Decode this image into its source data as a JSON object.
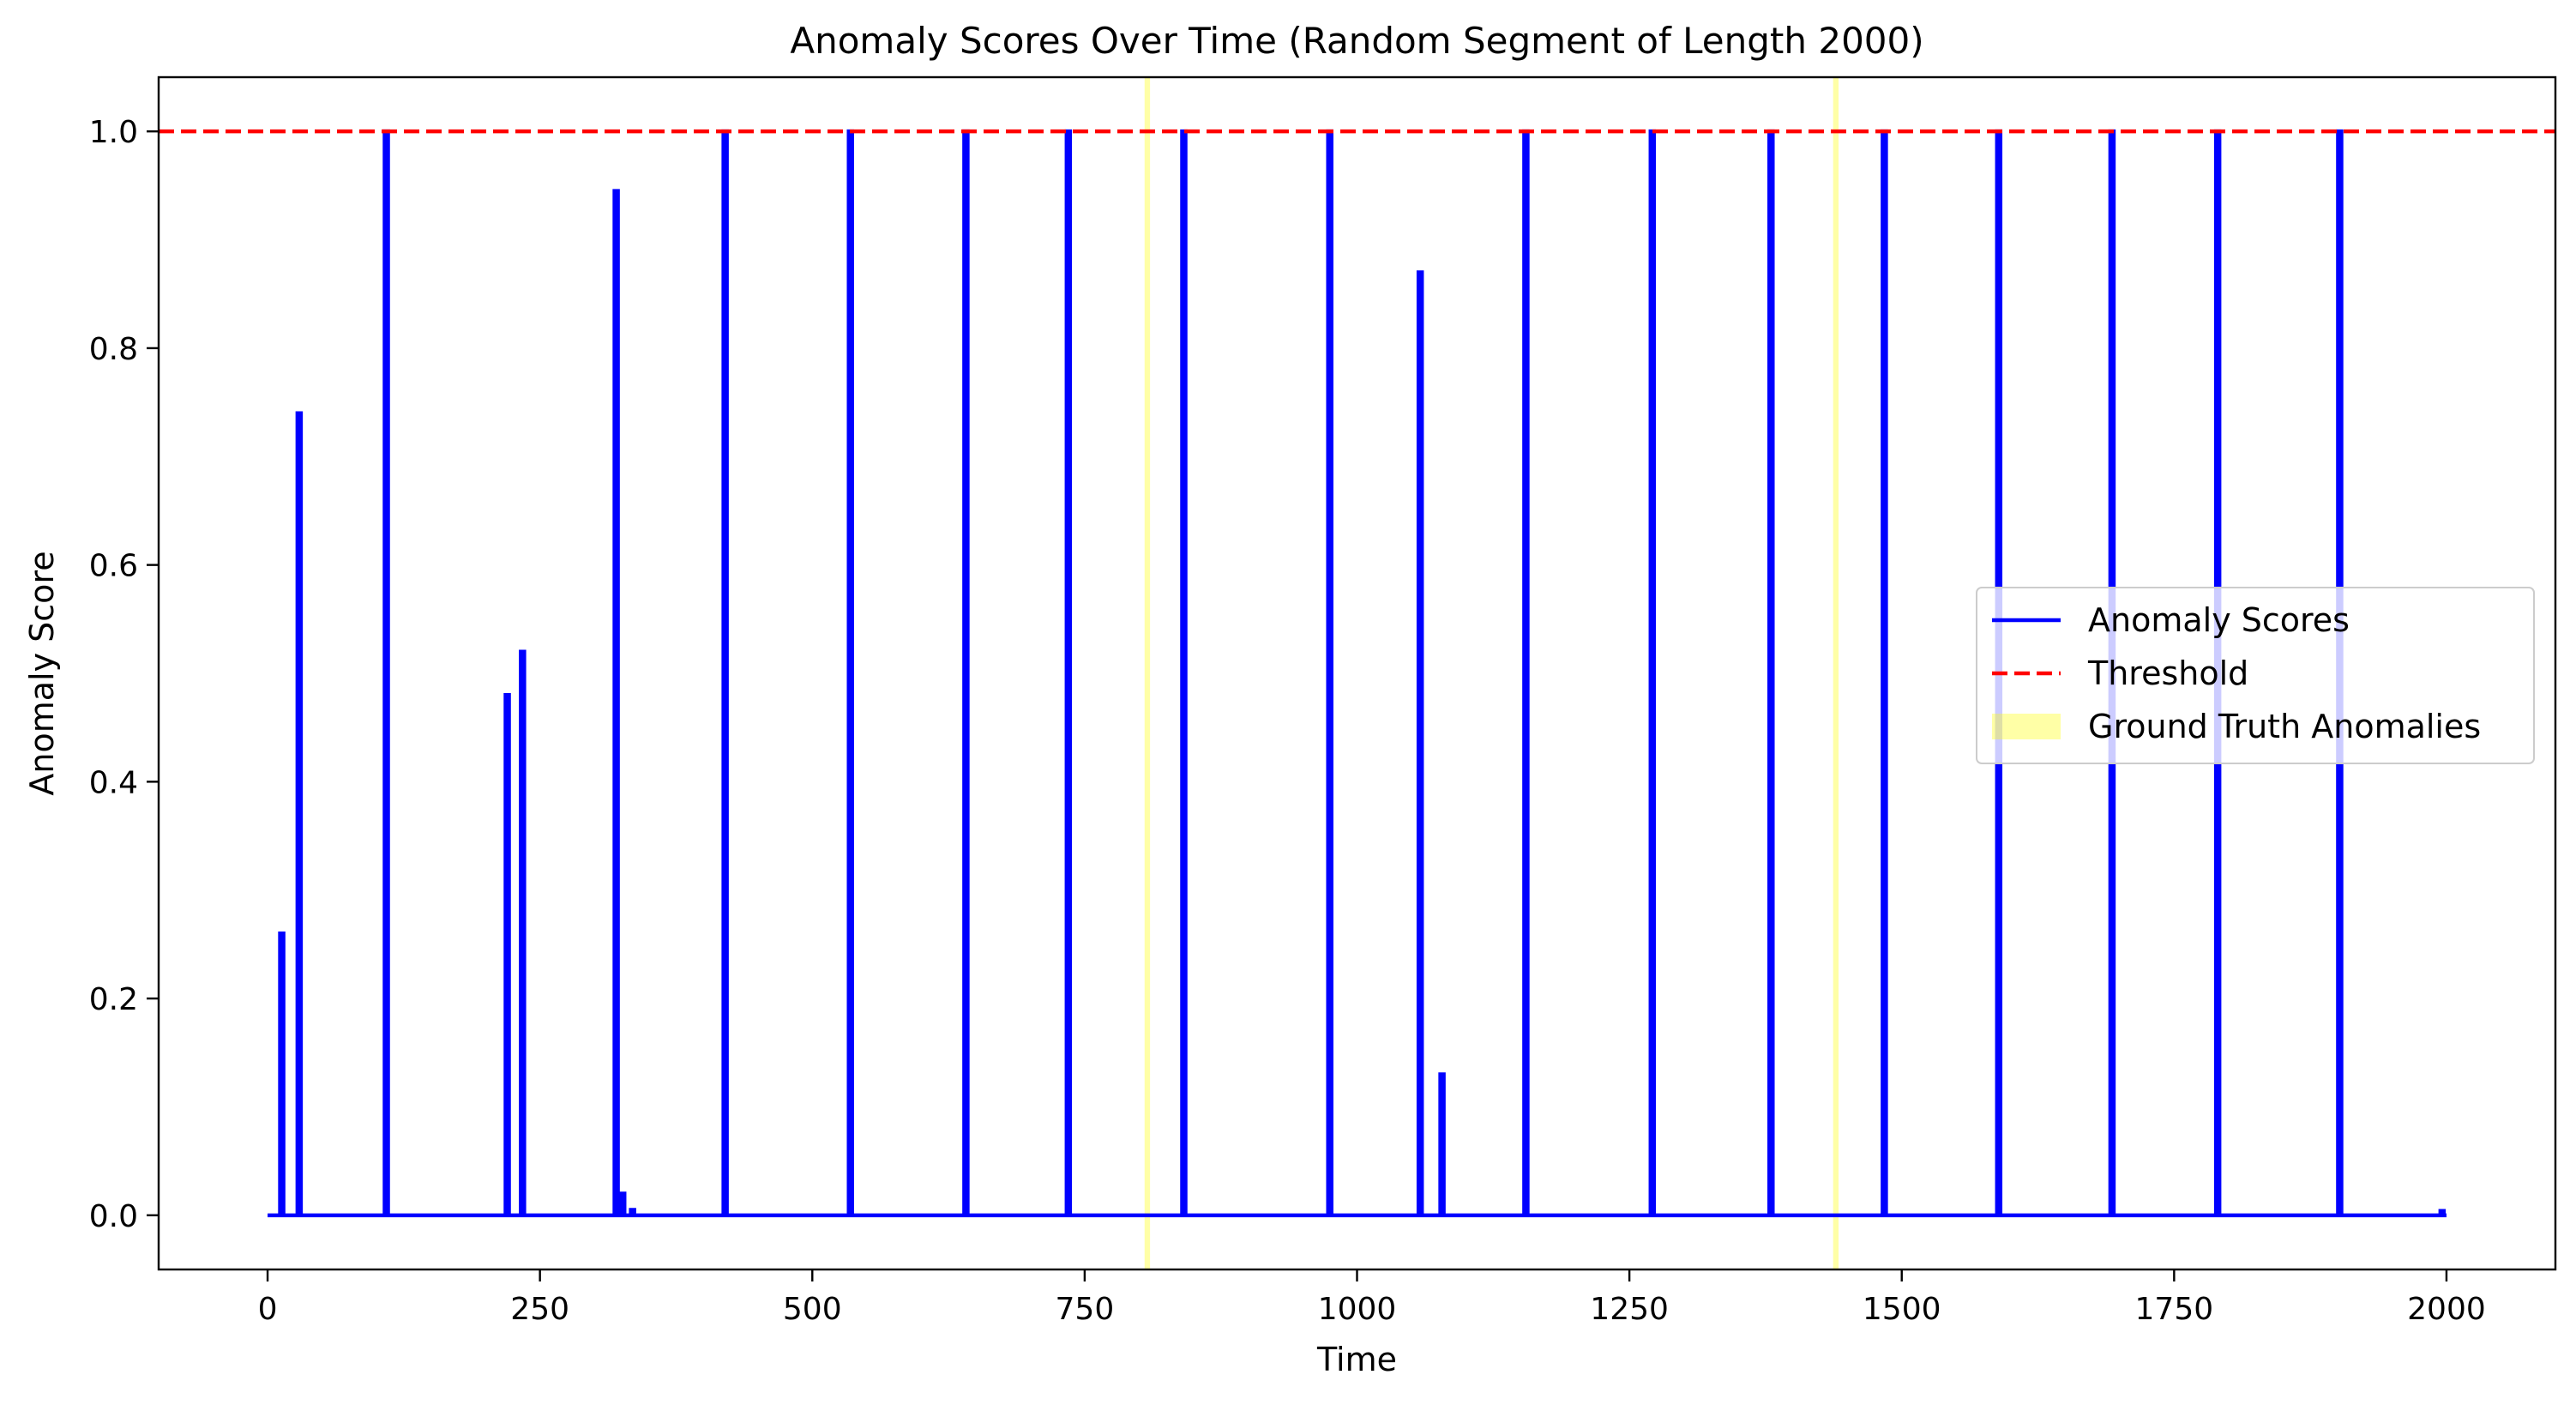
{
  "chart_data": {
    "type": "line",
    "title": "Anomaly Scores Over Time (Random Segment of Length 2000)",
    "xlabel": "Time",
    "ylabel": "Anomaly Score",
    "xlim": [
      -100,
      2100
    ],
    "ylim": [
      -0.05,
      1.05
    ],
    "xticks": [
      0,
      250,
      500,
      750,
      1000,
      1250,
      1500,
      1750,
      2000
    ],
    "xtick_labels": [
      "0",
      "250",
      "500",
      "750",
      "1000",
      "1250",
      "1500",
      "1750",
      "2000"
    ],
    "yticks": [
      0.0,
      0.2,
      0.4,
      0.6,
      0.8,
      1.0
    ],
    "ytick_labels": [
      "0.0",
      "0.2",
      "0.4",
      "0.6",
      "0.8",
      "1.0"
    ],
    "grid": false,
    "legend_placement": "center-right",
    "series": [
      {
        "name": "Anomaly Scores",
        "color": "#0000ff",
        "style": "solid",
        "spikes": [
          {
            "x": 13,
            "y": 0.26
          },
          {
            "x": 29,
            "y": 0.74
          },
          {
            "x": 109,
            "y": 1.0
          },
          {
            "x": 220,
            "y": 0.48
          },
          {
            "x": 234,
            "y": 0.52
          },
          {
            "x": 320,
            "y": 0.945
          },
          {
            "x": 326,
            "y": 0.02
          },
          {
            "x": 335,
            "y": 0.005
          },
          {
            "x": 420,
            "y": 1.0
          },
          {
            "x": 535,
            "y": 1.0
          },
          {
            "x": 641,
            "y": 1.0
          },
          {
            "x": 735,
            "y": 1.0
          },
          {
            "x": 841,
            "y": 1.0
          },
          {
            "x": 975,
            "y": 1.0
          },
          {
            "x": 1058,
            "y": 0.87
          },
          {
            "x": 1078,
            "y": 0.13
          },
          {
            "x": 1155,
            "y": 1.0
          },
          {
            "x": 1271,
            "y": 1.0
          },
          {
            "x": 1380,
            "y": 1.0
          },
          {
            "x": 1484,
            "y": 1.0
          },
          {
            "x": 1589,
            "y": 1.0
          },
          {
            "x": 1693,
            "y": 1.0
          },
          {
            "x": 1790,
            "y": 1.0
          },
          {
            "x": 1902,
            "y": 1.0
          },
          {
            "x": 1996,
            "y": 0.004
          }
        ],
        "x_range": [
          0,
          2000
        ],
        "baseline": 0.0
      },
      {
        "name": "Threshold",
        "color": "#ff0000",
        "style": "dashed",
        "y": 1.0
      }
    ],
    "ground_truth": {
      "name": "Ground Truth Anomalies",
      "color": "#ffff00",
      "alpha": 0.35,
      "spans": [
        [
          805,
          810
        ],
        [
          1437,
          1442
        ]
      ]
    }
  }
}
